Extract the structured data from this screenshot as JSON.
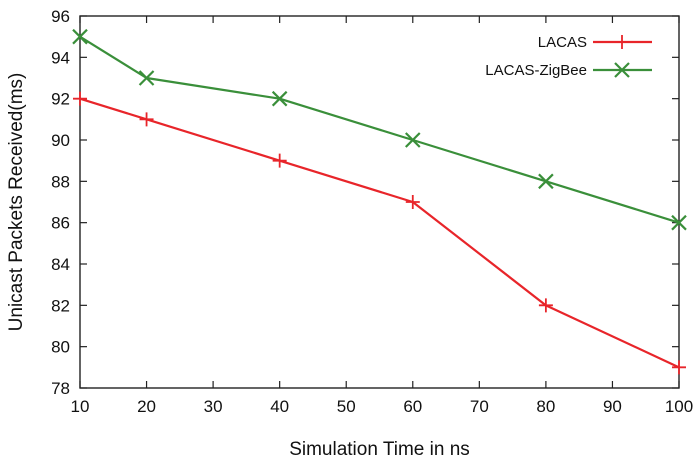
{
  "chart_data": {
    "type": "line",
    "title": "",
    "xlabel": "Simulation Time in ns",
    "ylabel": "Unicast Packets Received(ms)",
    "xlim": [
      10,
      100
    ],
    "ylim": [
      78,
      96
    ],
    "xticks": [
      10,
      20,
      30,
      40,
      50,
      60,
      70,
      80,
      90,
      100
    ],
    "yticks": [
      78,
      80,
      82,
      84,
      86,
      88,
      90,
      92,
      94,
      96
    ],
    "grid": false,
    "legend_position": "top-right",
    "series": [
      {
        "name": "LACAS",
        "color": "#e8252a",
        "marker": "plus",
        "x": [
          10,
          20,
          40,
          60,
          80,
          100
        ],
        "values": [
          92,
          91,
          89,
          87,
          82,
          79
        ]
      },
      {
        "name": "LACAS-ZigBee",
        "color": "#3a8f3a",
        "marker": "x",
        "x": [
          10,
          20,
          40,
          60,
          80,
          100
        ],
        "values": [
          95,
          93,
          92,
          90,
          88,
          86
        ]
      }
    ]
  }
}
